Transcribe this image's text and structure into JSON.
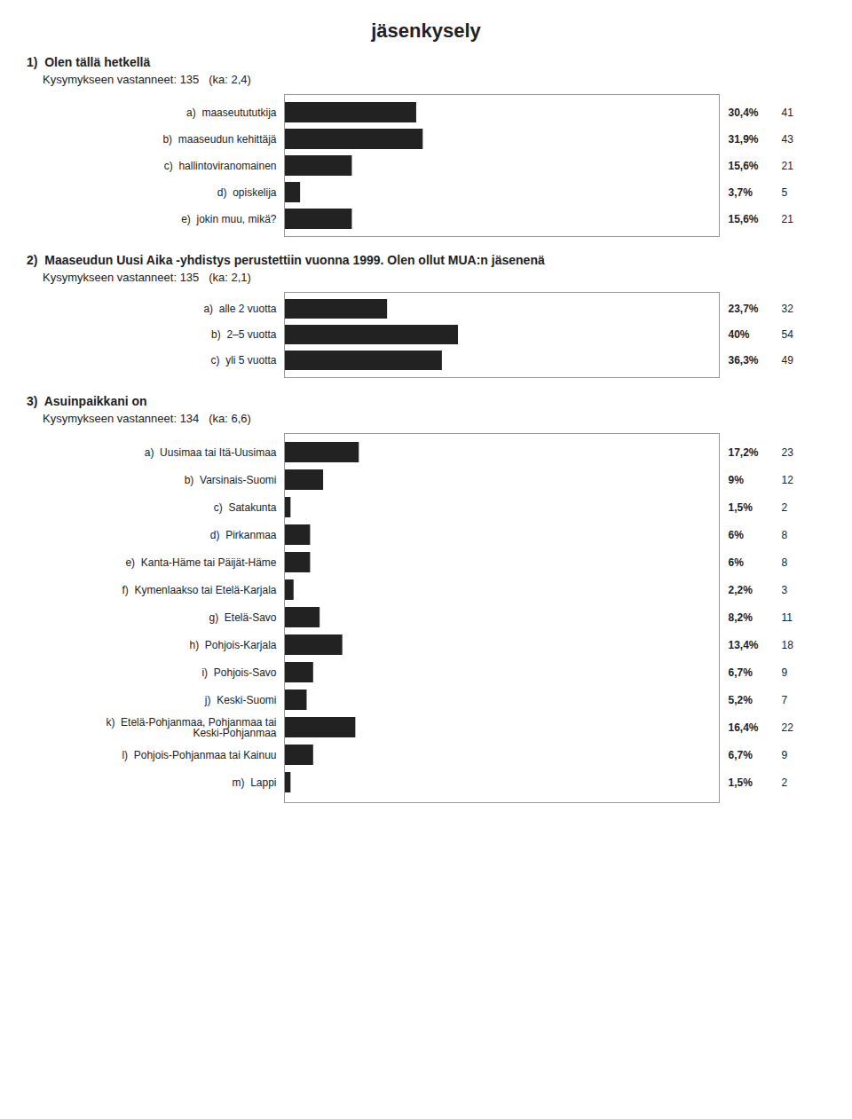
{
  "title": "jäsenkysely",
  "chart_data": [
    {
      "type": "bar",
      "orientation": "horizontal",
      "title": "1)  Olen tällä hetkellä",
      "subtitle": "Kysymykseen vastanneet: 135   (ka: 2,4)",
      "categories": [
        "a)  maaseutututkija",
        "b)  maaseudun kehittäjä",
        "c)  hallintoviranomainen",
        "d)  opiskelija",
        "e)  jokin muu, mikä?"
      ],
      "values": [
        30.4,
        31.9,
        15.6,
        3.7,
        15.6
      ],
      "value_labels": [
        "30,4%",
        "31,9%",
        "15,6%",
        "3,7%",
        "15,6%"
      ],
      "counts": [
        41,
        43,
        21,
        5,
        21
      ],
      "xlim": [
        0,
        100
      ],
      "tick_labels": "y",
      "data_labels": true
    },
    {
      "type": "bar",
      "orientation": "horizontal",
      "title": "2)  Maaseudun Uusi Aika -yhdistys perustettiin vuonna 1999. Olen ollut MUA:n jäsenenä",
      "subtitle": "Kysymykseen vastanneet: 135   (ka: 2,1)",
      "categories": [
        "a)  alle 2 vuotta",
        "b)  2–5 vuotta",
        "c)  yli 5 vuotta"
      ],
      "values": [
        23.7,
        40,
        36.3
      ],
      "value_labels": [
        "23,7%",
        "40%",
        "36,3%"
      ],
      "counts": [
        32,
        54,
        49
      ],
      "xlim": [
        0,
        100
      ],
      "tick_labels": "y",
      "data_labels": true
    },
    {
      "type": "bar",
      "orientation": "horizontal",
      "title": "3)  Asuinpaikkani on",
      "subtitle": "Kysymykseen vastanneet: 134   (ka: 6,6)",
      "categories": [
        "a)  Uusimaa tai Itä-Uusimaa",
        "b)  Varsinais-Suomi",
        "c)  Satakunta",
        "d)  Pirkanmaa",
        "e)  Kanta-Häme tai Päijät-Häme",
        "f)  Kymenlaakso tai Etelä-Karjala",
        "g)  Etelä-Savo",
        "h)  Pohjois-Karjala",
        "i)  Pohjois-Savo",
        "j)  Keski-Suomi",
        "k)  Etelä-Pohjanmaa, Pohjanmaa tai\nKeski-Pohjanmaa",
        "l)  Pohjois-Pohjanmaa tai Kainuu",
        "m)  Lappi"
      ],
      "values": [
        17.2,
        9.0,
        1.5,
        6.0,
        6.0,
        2.2,
        8.2,
        13.4,
        6.7,
        5.2,
        16.4,
        6.7,
        1.5
      ],
      "value_labels": [
        "17,2%",
        "9%",
        "1,5%",
        "6%",
        "6%",
        "2,2%",
        "8,2%",
        "13,4%",
        "6,7%",
        "5,2%",
        "16,4%",
        "6,7%",
        "1,5%"
      ],
      "counts": [
        23,
        12,
        2,
        8,
        8,
        3,
        11,
        18,
        9,
        7,
        22,
        9,
        2
      ],
      "xlim": [
        0,
        100
      ],
      "tick_labels": "y",
      "data_labels": true
    }
  ]
}
